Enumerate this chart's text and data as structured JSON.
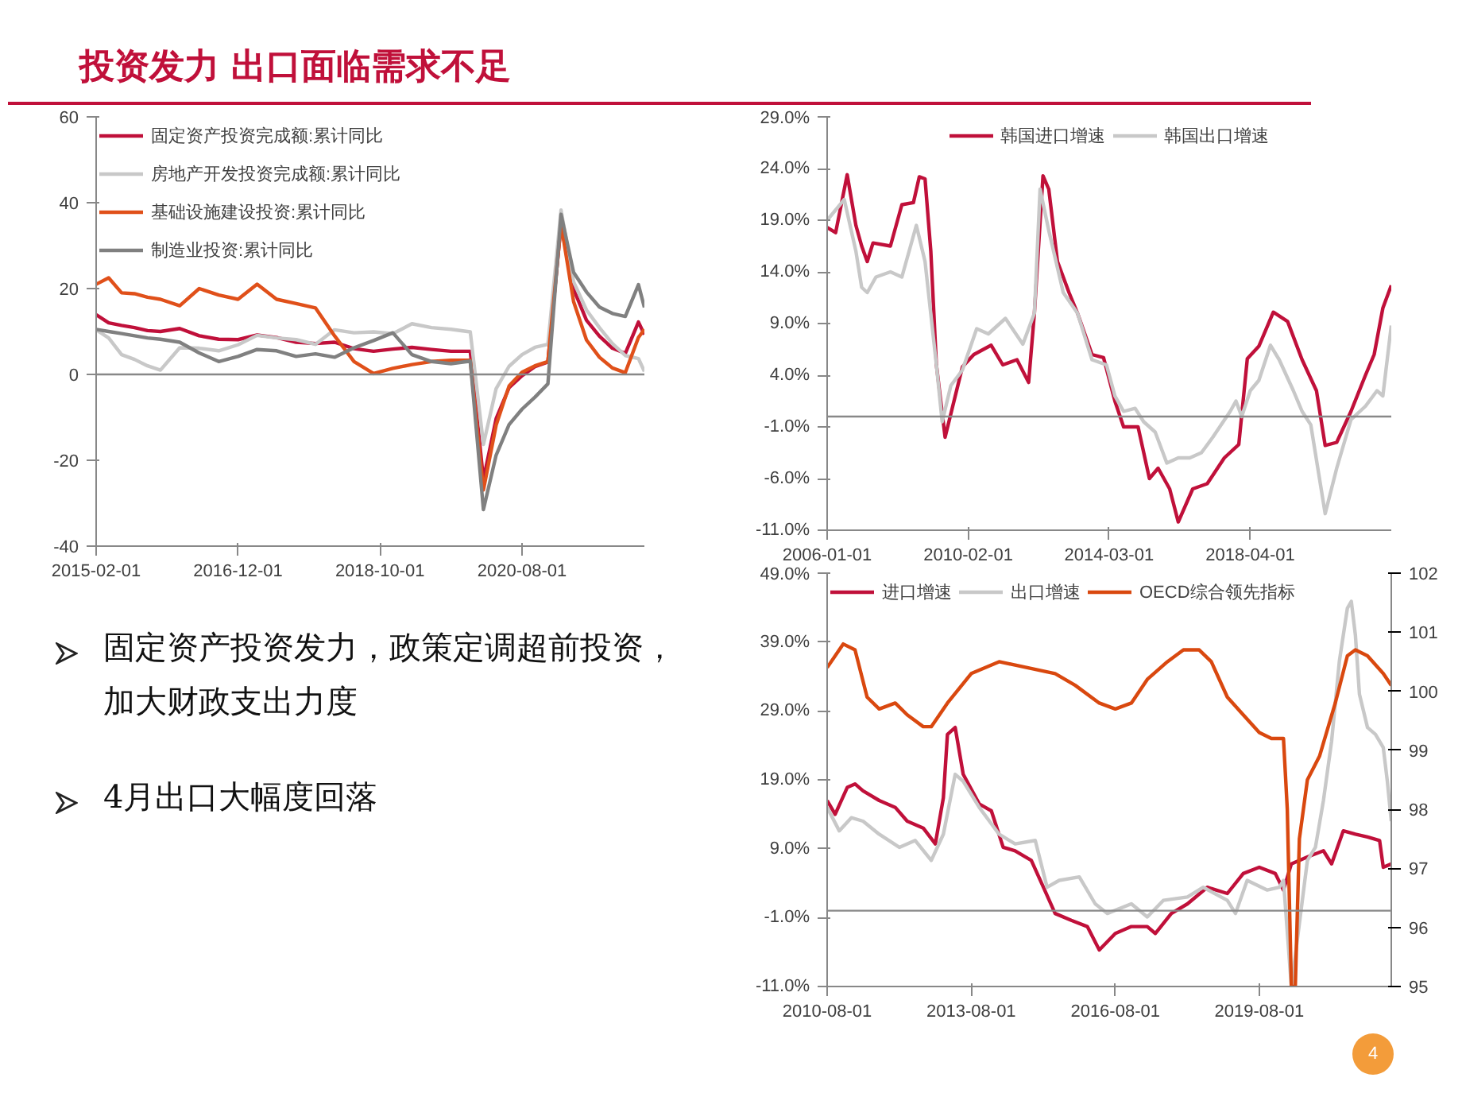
{
  "chart_data": [
    {
      "type": "line",
      "legend": "top left",
      "grid": false,
      "ref_lines": [
        {
          "axis": "y",
          "value": 0,
          "color": "#888888"
        }
      ],
      "xlim": [
        "2015-02",
        "2022-03"
      ],
      "ylim": [
        -40,
        60
      ],
      "yticks": [
        -40,
        -20,
        0,
        20,
        40,
        60
      ],
      "xticks": [
        "2015-02-01",
        "2016-12-01",
        "2018-10-01",
        "2020-08-01"
      ],
      "x": [
        "2015-02",
        "2015-04",
        "2015-06",
        "2015-08",
        "2015-10",
        "2015-12",
        "2016-03",
        "2016-06",
        "2016-09",
        "2016-12",
        "2017-03",
        "2017-06",
        "2017-09",
        "2017-12",
        "2018-03",
        "2018-06",
        "2018-09",
        "2018-12",
        "2019-03",
        "2019-06",
        "2019-09",
        "2019-12",
        "2020-02",
        "2020-04",
        "2020-06",
        "2020-08",
        "2020-10",
        "2020-12",
        "2021-02",
        "2021-04",
        "2021-06",
        "2021-08",
        "2021-10",
        "2021-12",
        "2022-02",
        "2022-03"
      ],
      "series": [
        {
          "name": "固定资产投资完成额:累计同比",
          "color": "#c0103a",
          "values": [
            13.9,
            12,
            11.4,
            10.9,
            10.2,
            10.0,
            10.7,
            9.0,
            8.2,
            8.1,
            9.2,
            8.6,
            7.5,
            7.2,
            7.5,
            6.0,
            5.4,
            5.9,
            6.3,
            5.8,
            5.4,
            5.4,
            -24.5,
            -10.3,
            -3.1,
            -0.3,
            1.8,
            2.9,
            35.0,
            19.9,
            12.6,
            8.9,
            6.1,
            4.9,
            12.2,
            9.3
          ]
        },
        {
          "name": "房地产开发投资完成额:累计同比",
          "color": "#c8c8c8",
          "values": [
            10.4,
            8.5,
            4.6,
            3.5,
            2.0,
            1.0,
            6.2,
            6.1,
            5.5,
            6.9,
            9.1,
            8.5,
            8.1,
            7.0,
            10.4,
            9.7,
            9.9,
            9.5,
            11.8,
            10.9,
            10.5,
            9.9,
            -16.3,
            -3.3,
            1.9,
            4.6,
            6.3,
            7.0,
            38.3,
            21.6,
            15.0,
            10.9,
            7.2,
            4.4,
            3.7,
            0.7
          ]
        },
        {
          "name": "基础设施建设投资:累计同比",
          "color": "#e0501a",
          "values": [
            21.0,
            22.5,
            19.0,
            18.8,
            18.0,
            17.5,
            16.0,
            20.0,
            18.5,
            17.5,
            21.0,
            17.5,
            16.5,
            15.5,
            9.0,
            3.0,
            0.2,
            1.4,
            2.3,
            3.0,
            3.3,
            3.3,
            -26.9,
            -11.8,
            -2.7,
            0.5,
            2.0,
            3.0,
            35.0,
            17.0,
            8.0,
            4.0,
            1.5,
            0.4,
            8.6,
            10.5
          ]
        },
        {
          "name": "制造业投资:累计同比",
          "color": "#808080",
          "values": [
            10.5,
            10.0,
            9.5,
            9.0,
            8.5,
            8.2,
            7.5,
            5.0,
            3.0,
            4.2,
            5.8,
            5.5,
            4.2,
            4.8,
            4.0,
            6.2,
            7.9,
            9.7,
            4.6,
            3.0,
            2.5,
            3.1,
            -31.5,
            -18.8,
            -11.7,
            -8.1,
            -5.3,
            -2.2,
            37.3,
            23.8,
            19.2,
            15.7,
            14.2,
            13.5,
            20.9,
            15.6
          ]
        }
      ]
    },
    {
      "type": "line",
      "legend": "top",
      "grid": false,
      "ref_lines": [
        {
          "axis": "y",
          "value": 0,
          "color": "#888888"
        }
      ],
      "xlim": [
        "2006-01",
        "2022-05"
      ],
      "ylim": [
        -11,
        29
      ],
      "yticks": [
        {
          "value": -11,
          "label": "-11.0%"
        },
        {
          "value": -6,
          "label": "-6.0%"
        },
        {
          "value": -1,
          "label": "-1.0%"
        },
        {
          "value": 4,
          "label": "4.0%"
        },
        {
          "value": 9,
          "label": "9.0%"
        },
        {
          "value": 14,
          "label": "14.0%"
        },
        {
          "value": 19,
          "label": "19.0%"
        },
        {
          "value": 24,
          "label": "24.0%"
        },
        {
          "value": 29,
          "label": "29.0%"
        }
      ],
      "xticks": [
        "2006-01-01",
        "2010-02-01",
        "2014-03-01",
        "2018-04-01"
      ],
      "series": [
        {
          "name": "韩国进口增速",
          "color": "#c0103a",
          "x": [
            "2006-01",
            "2006-04",
            "2006-08",
            "2006-11",
            "2007-01",
            "2007-03",
            "2007-05",
            "2007-11",
            "2008-03",
            "2008-07",
            "2008-09",
            "2008-11",
            "2009-01",
            "2009-03",
            "2009-06",
            "2009-12",
            "2010-04",
            "2010-10",
            "2011-02",
            "2011-07",
            "2011-11",
            "2012-01",
            "2012-04",
            "2012-06",
            "2012-09",
            "2013-01",
            "2013-04",
            "2013-09",
            "2014-01",
            "2014-05",
            "2014-08",
            "2015-01",
            "2015-05",
            "2015-08",
            "2015-12",
            "2016-03",
            "2016-08",
            "2017-01",
            "2017-07",
            "2017-12",
            "2018-03",
            "2018-07",
            "2018-12",
            "2019-05",
            "2019-10",
            "2020-03",
            "2020-06",
            "2020-10",
            "2021-03",
            "2021-08",
            "2021-11",
            "2022-02",
            "2022-05"
          ],
          "values": [
            18.3,
            17.8,
            23.4,
            18.5,
            16.5,
            15.0,
            16.8,
            16.5,
            20.5,
            20.7,
            23.2,
            23.0,
            16.0,
            5.0,
            -2.0,
            4.8,
            6.0,
            6.9,
            5.0,
            5.5,
            3.3,
            10.0,
            23.3,
            22.0,
            15.0,
            12.0,
            10.0,
            6.0,
            5.7,
            1.5,
            -1.0,
            -1.0,
            -6.0,
            -5.0,
            -7.0,
            -10.2,
            -7.0,
            -6.5,
            -4.0,
            -2.7,
            5.6,
            6.8,
            10.1,
            9.2,
            5.5,
            2.5,
            -2.8,
            -2.5,
            0.5,
            4.0,
            6.0,
            10.5,
            12.7
          ]
        },
        {
          "name": "韩国出口增速",
          "color": "#c8c8c8",
          "x": [
            "2006-01",
            "2006-07",
            "2006-11",
            "2007-01",
            "2007-03",
            "2007-06",
            "2007-11",
            "2008-03",
            "2008-08",
            "2008-11",
            "2009-03",
            "2009-05",
            "2009-08",
            "2009-12",
            "2010-05",
            "2010-09",
            "2011-03",
            "2011-09",
            "2012-01",
            "2012-03",
            "2012-06",
            "2012-11",
            "2013-04",
            "2013-09",
            "2014-02",
            "2014-05",
            "2014-08",
            "2014-12",
            "2015-03",
            "2015-07",
            "2015-11",
            "2016-03",
            "2016-07",
            "2016-11",
            "2017-03",
            "2017-09",
            "2017-11",
            "2018-01",
            "2018-04",
            "2018-07",
            "2018-11",
            "2019-02",
            "2019-07",
            "2019-10",
            "2020-01",
            "2020-06",
            "2020-10",
            "2021-03",
            "2021-08",
            "2021-12",
            "2022-02",
            "2022-05"
          ],
          "values": [
            19.0,
            21.0,
            16.0,
            12.5,
            12.0,
            13.5,
            14.0,
            13.5,
            18.5,
            15.0,
            5.0,
            -0.5,
            3.0,
            4.5,
            8.5,
            8.0,
            9.5,
            7.0,
            10.0,
            22.0,
            18.0,
            12.0,
            10.0,
            5.5,
            5.0,
            2.0,
            0.5,
            0.8,
            -0.5,
            -1.5,
            -4.5,
            -4.0,
            -4.0,
            -3.5,
            -2.0,
            0.5,
            1.5,
            0.0,
            2.5,
            3.5,
            6.9,
            5.5,
            2.5,
            0.5,
            -0.8,
            -9.4,
            -5.0,
            -0.3,
            1.0,
            2.5,
            2.0,
            8.8
          ]
        }
      ]
    },
    {
      "type": "line",
      "legend": "top left",
      "grid": false,
      "ref_lines": [
        {
          "axis": "y",
          "value": 0,
          "color": "#888888"
        }
      ],
      "xlim": [
        "2010-08",
        "2022-05"
      ],
      "ylim": [
        -11,
        49
      ],
      "yticks": [
        {
          "value": -11,
          "label": "-11.0%"
        },
        {
          "value": -1,
          "label": "-1.0%"
        },
        {
          "value": 9,
          "label": "9.0%"
        },
        {
          "value": 19,
          "label": "19.0%"
        },
        {
          "value": 29,
          "label": "29.0%"
        },
        {
          "value": 39,
          "label": "39.0%"
        },
        {
          "value": 49,
          "label": "49.0%"
        }
      ],
      "y2lim": [
        95,
        102
      ],
      "y2ticks": [
        95,
        96,
        97,
        98,
        99,
        100,
        101,
        102
      ],
      "xticks": [
        "2010-08-01",
        "2013-08-01",
        "2016-08-01",
        "2019-08-01"
      ],
      "series": [
        {
          "name": "进口增速",
          "color": "#c0103a",
          "x": [
            "2010-08",
            "2010-10",
            "2011-01",
            "2011-03",
            "2011-05",
            "2011-09",
            "2012-01",
            "2012-04",
            "2012-08",
            "2012-11",
            "2013-01",
            "2013-02",
            "2013-04",
            "2013-06",
            "2013-10",
            "2014-01",
            "2014-04",
            "2014-07",
            "2014-11",
            "2015-02",
            "2015-05",
            "2015-09",
            "2016-01",
            "2016-04",
            "2016-08",
            "2016-12",
            "2017-04",
            "2017-06",
            "2017-10",
            "2018-02",
            "2018-07",
            "2018-12",
            "2019-04",
            "2019-08",
            "2019-12",
            "2020-02",
            "2020-04",
            "2020-08",
            "2020-12",
            "2021-02",
            "2021-05",
            "2021-08",
            "2021-11",
            "2022-02",
            "2022-03",
            "2022-05"
          ],
          "values": [
            16.0,
            14.0,
            17.9,
            18.4,
            17.4,
            16.0,
            15.0,
            13.0,
            12.0,
            9.7,
            16.4,
            25.6,
            26.6,
            19.8,
            15.5,
            14.5,
            9.2,
            8.7,
            7.3,
            3.4,
            -0.4,
            -1.4,
            -2.3,
            -5.7,
            -3.3,
            -2.3,
            -2.3,
            -3.3,
            -0.4,
            1.0,
            3.4,
            2.5,
            5.4,
            6.3,
            5.4,
            3.0,
            6.8,
            7.8,
            8.7,
            6.8,
            11.6,
            11.1,
            10.7,
            10.2,
            6.3,
            6.8
          ]
        },
        {
          "name": "出口增速",
          "color": "#c8c8c8",
          "x": [
            "2010-08",
            "2010-11",
            "2011-02",
            "2011-05",
            "2011-09",
            "2012-02",
            "2012-06",
            "2012-10",
            "2013-01",
            "2013-04",
            "2013-06",
            "2013-10",
            "2014-03",
            "2014-07",
            "2014-12",
            "2015-03",
            "2015-06",
            "2015-11",
            "2016-03",
            "2016-06",
            "2016-12",
            "2017-04",
            "2017-08",
            "2018-02",
            "2018-06",
            "2018-12",
            "2019-02",
            "2019-05",
            "2019-10",
            "2020-01",
            "2020-02",
            "2020-04",
            "2020-08",
            "2020-10",
            "2020-12",
            "2021-02",
            "2021-04",
            "2021-06",
            "2021-07",
            "2021-08",
            "2021-09",
            "2021-11",
            "2022-01",
            "2022-03",
            "2022-04",
            "2022-05"
          ],
          "values": [
            15.0,
            11.6,
            13.5,
            13.0,
            11.1,
            9.2,
            10.2,
            7.3,
            11.1,
            19.8,
            18.8,
            15.0,
            11.1,
            9.7,
            10.2,
            3.4,
            4.4,
            4.9,
            1.0,
            -0.4,
            1.0,
            -0.9,
            1.5,
            2.0,
            3.4,
            1.5,
            -0.4,
            4.4,
            3.0,
            3.4,
            4.4,
            -11.0,
            7.3,
            9.2,
            16.0,
            24.6,
            36.2,
            43.9,
            44.9,
            40.0,
            31.4,
            26.6,
            25.6,
            23.7,
            18.8,
            13.0
          ]
        },
        {
          "name": "OECD综合领先指标",
          "color": "#d9480f",
          "axis": "y2",
          "x": [
            "2010-08",
            "2010-12",
            "2011-03",
            "2011-06",
            "2011-09",
            "2012-01",
            "2012-04",
            "2012-08",
            "2012-10",
            "2013-02",
            "2013-08",
            "2014-03",
            "2014-10",
            "2015-05",
            "2015-10",
            "2016-04",
            "2016-08",
            "2016-12",
            "2017-04",
            "2017-09",
            "2018-01",
            "2018-05",
            "2018-08",
            "2018-12",
            "2019-04",
            "2019-08",
            "2019-11",
            "2020-01",
            "2020-02",
            "2020-03",
            "2020-04",
            "2020-05",
            "2020-06",
            "2020-08",
            "2020-11",
            "2021-03",
            "2021-06",
            "2021-08",
            "2021-11",
            "2022-03",
            "2022-05"
          ],
          "values": [
            100.4,
            100.8,
            100.7,
            99.9,
            99.7,
            99.8,
            99.6,
            99.4,
            99.4,
            99.8,
            100.3,
            100.5,
            100.4,
            100.3,
            100.1,
            99.8,
            99.7,
            99.8,
            100.2,
            100.5,
            100.7,
            100.7,
            100.5,
            99.9,
            99.6,
            99.3,
            99.2,
            99.2,
            99.2,
            98.0,
            95.0,
            95.0,
            97.5,
            98.5,
            98.9,
            99.8,
            100.6,
            100.7,
            100.6,
            100.3,
            100.1
          ]
        }
      ]
    },
    {
      "type": "other",
      "title": "投资发力  出口面临需求不足",
      "annotations": [
        "固定资产投资发力，政策定调超前投资，加大财政支出力度",
        "4月出口大幅度回落",
        "4"
      ]
    }
  ]
}
